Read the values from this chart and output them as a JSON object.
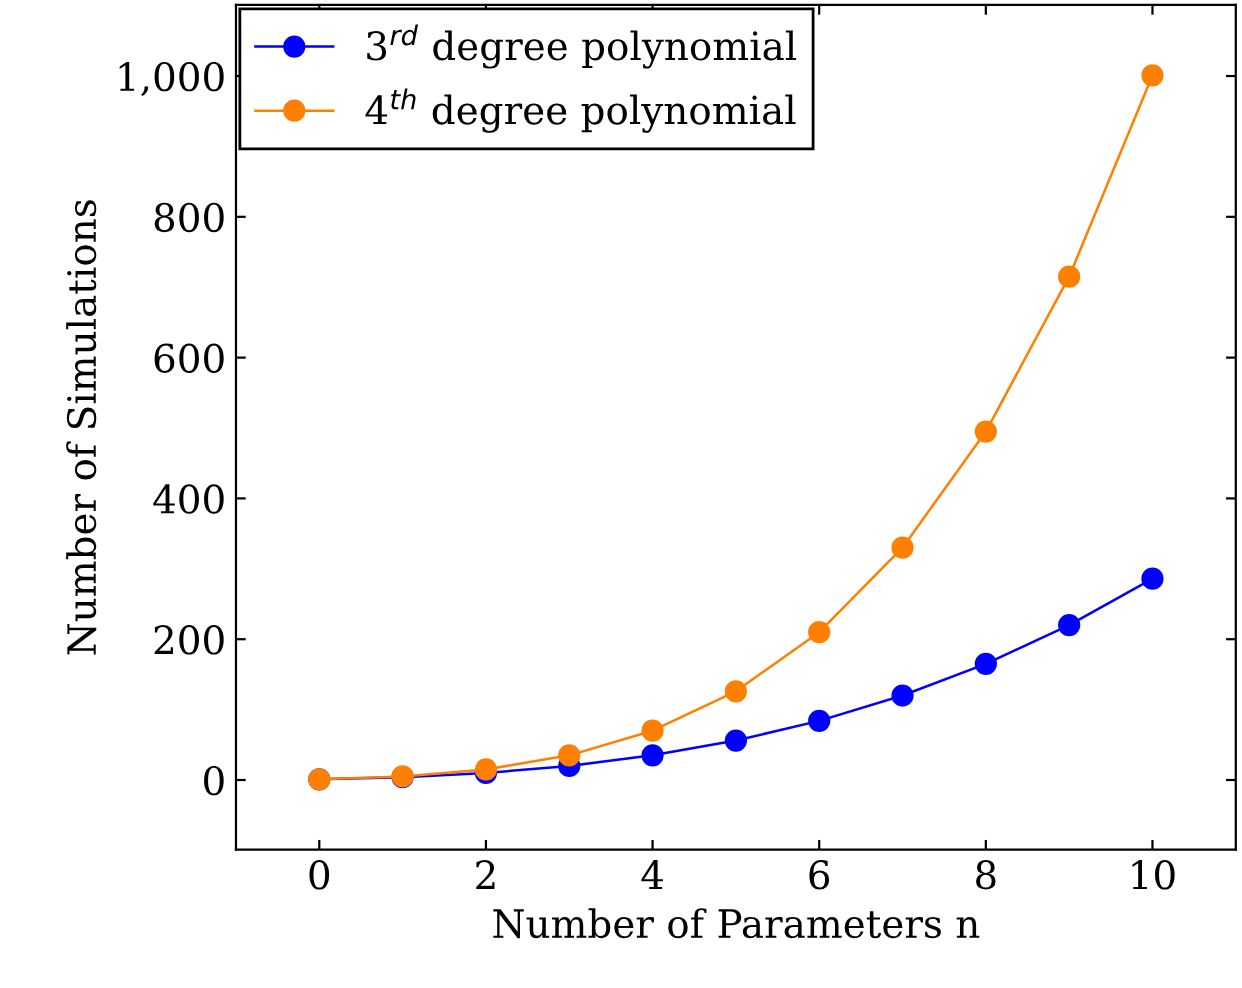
{
  "chart_data": {
    "type": "line",
    "xlabel": "Number of Parameters n",
    "ylabel": "Number of Simulations",
    "x": [
      0,
      1,
      2,
      3,
      4,
      5,
      6,
      7,
      8,
      9,
      10
    ],
    "series": [
      {
        "name": "3$^{rd}$ degree polynomial",
        "color": "#0000ff",
        "values": [
          1,
          4,
          10,
          20,
          35,
          56,
          84,
          120,
          165,
          220,
          286
        ]
      },
      {
        "name": "4$^{th}$ degree polynomial",
        "color": "#ff8000",
        "values": [
          1,
          5,
          15,
          35,
          70,
          126,
          210,
          330,
          495,
          715,
          1001
        ]
      }
    ],
    "xlim": [
      -1,
      11
    ],
    "ylim": [
      -99,
      1101
    ],
    "xticks": [
      0,
      2,
      4,
      6,
      8,
      10
    ],
    "yticks": [
      0,
      200,
      400,
      600,
      800,
      {
        "value": 1000,
        "label": "1,000"
      }
    ],
    "grid": false,
    "legend": "top left",
    "marker": "circle",
    "line_style": "solid"
  }
}
